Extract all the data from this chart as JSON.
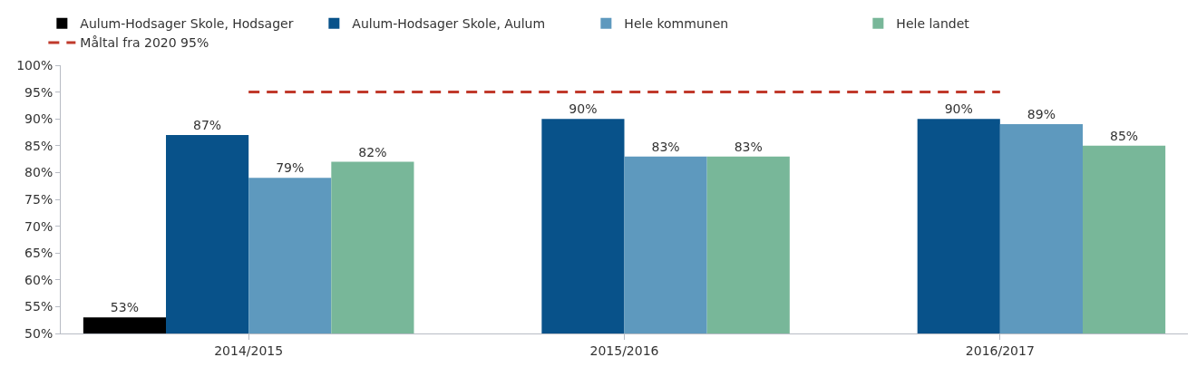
{
  "chart_data": {
    "type": "bar",
    "categories": [
      "2014/2015",
      "2015/2016",
      "2016/2017"
    ],
    "series": [
      {
        "name": "Aulum-Hodsager Skole, Hodsager",
        "color": "#000000",
        "values": [
          53,
          null,
          null
        ],
        "value_labels": [
          "53%",
          null,
          null
        ]
      },
      {
        "name": "Aulum-Hodsager Skole, Aulum",
        "color": "#08528a",
        "values": [
          87,
          90,
          90
        ],
        "value_labels": [
          "87%",
          "90%",
          "90%"
        ]
      },
      {
        "name": "Hele kommunen",
        "color": "#5e99be",
        "values": [
          79,
          83,
          89
        ],
        "value_labels": [
          "79%",
          "83%",
          "89%"
        ]
      },
      {
        "name": "Hele landet",
        "color": "#78b799",
        "values": [
          82,
          83,
          85
        ],
        "value_labels": [
          "82%",
          "83%",
          "85%"
        ]
      },
      {
        "type": "line",
        "name": "Måltal fra 2020 95%",
        "color": "#c0392b",
        "values": [
          95,
          95,
          95
        ],
        "line_style": "dashed",
        "marker": "none"
      }
    ],
    "ylim": [
      50,
      100
    ],
    "yticks": [
      {
        "value": 50,
        "label": "50%"
      },
      {
        "value": 55,
        "label": "55%"
      },
      {
        "value": 60,
        "label": "60%"
      },
      {
        "value": 65,
        "label": "65%"
      },
      {
        "value": 70,
        "label": "70%"
      },
      {
        "value": 75,
        "label": "75%"
      },
      {
        "value": 80,
        "label": "80%"
      },
      {
        "value": 85,
        "label": "85%"
      },
      {
        "value": 90,
        "label": "90%"
      },
      {
        "value": 95,
        "label": "95%"
      },
      {
        "value": 100,
        "label": "100%"
      }
    ],
    "legend": "top"
  }
}
